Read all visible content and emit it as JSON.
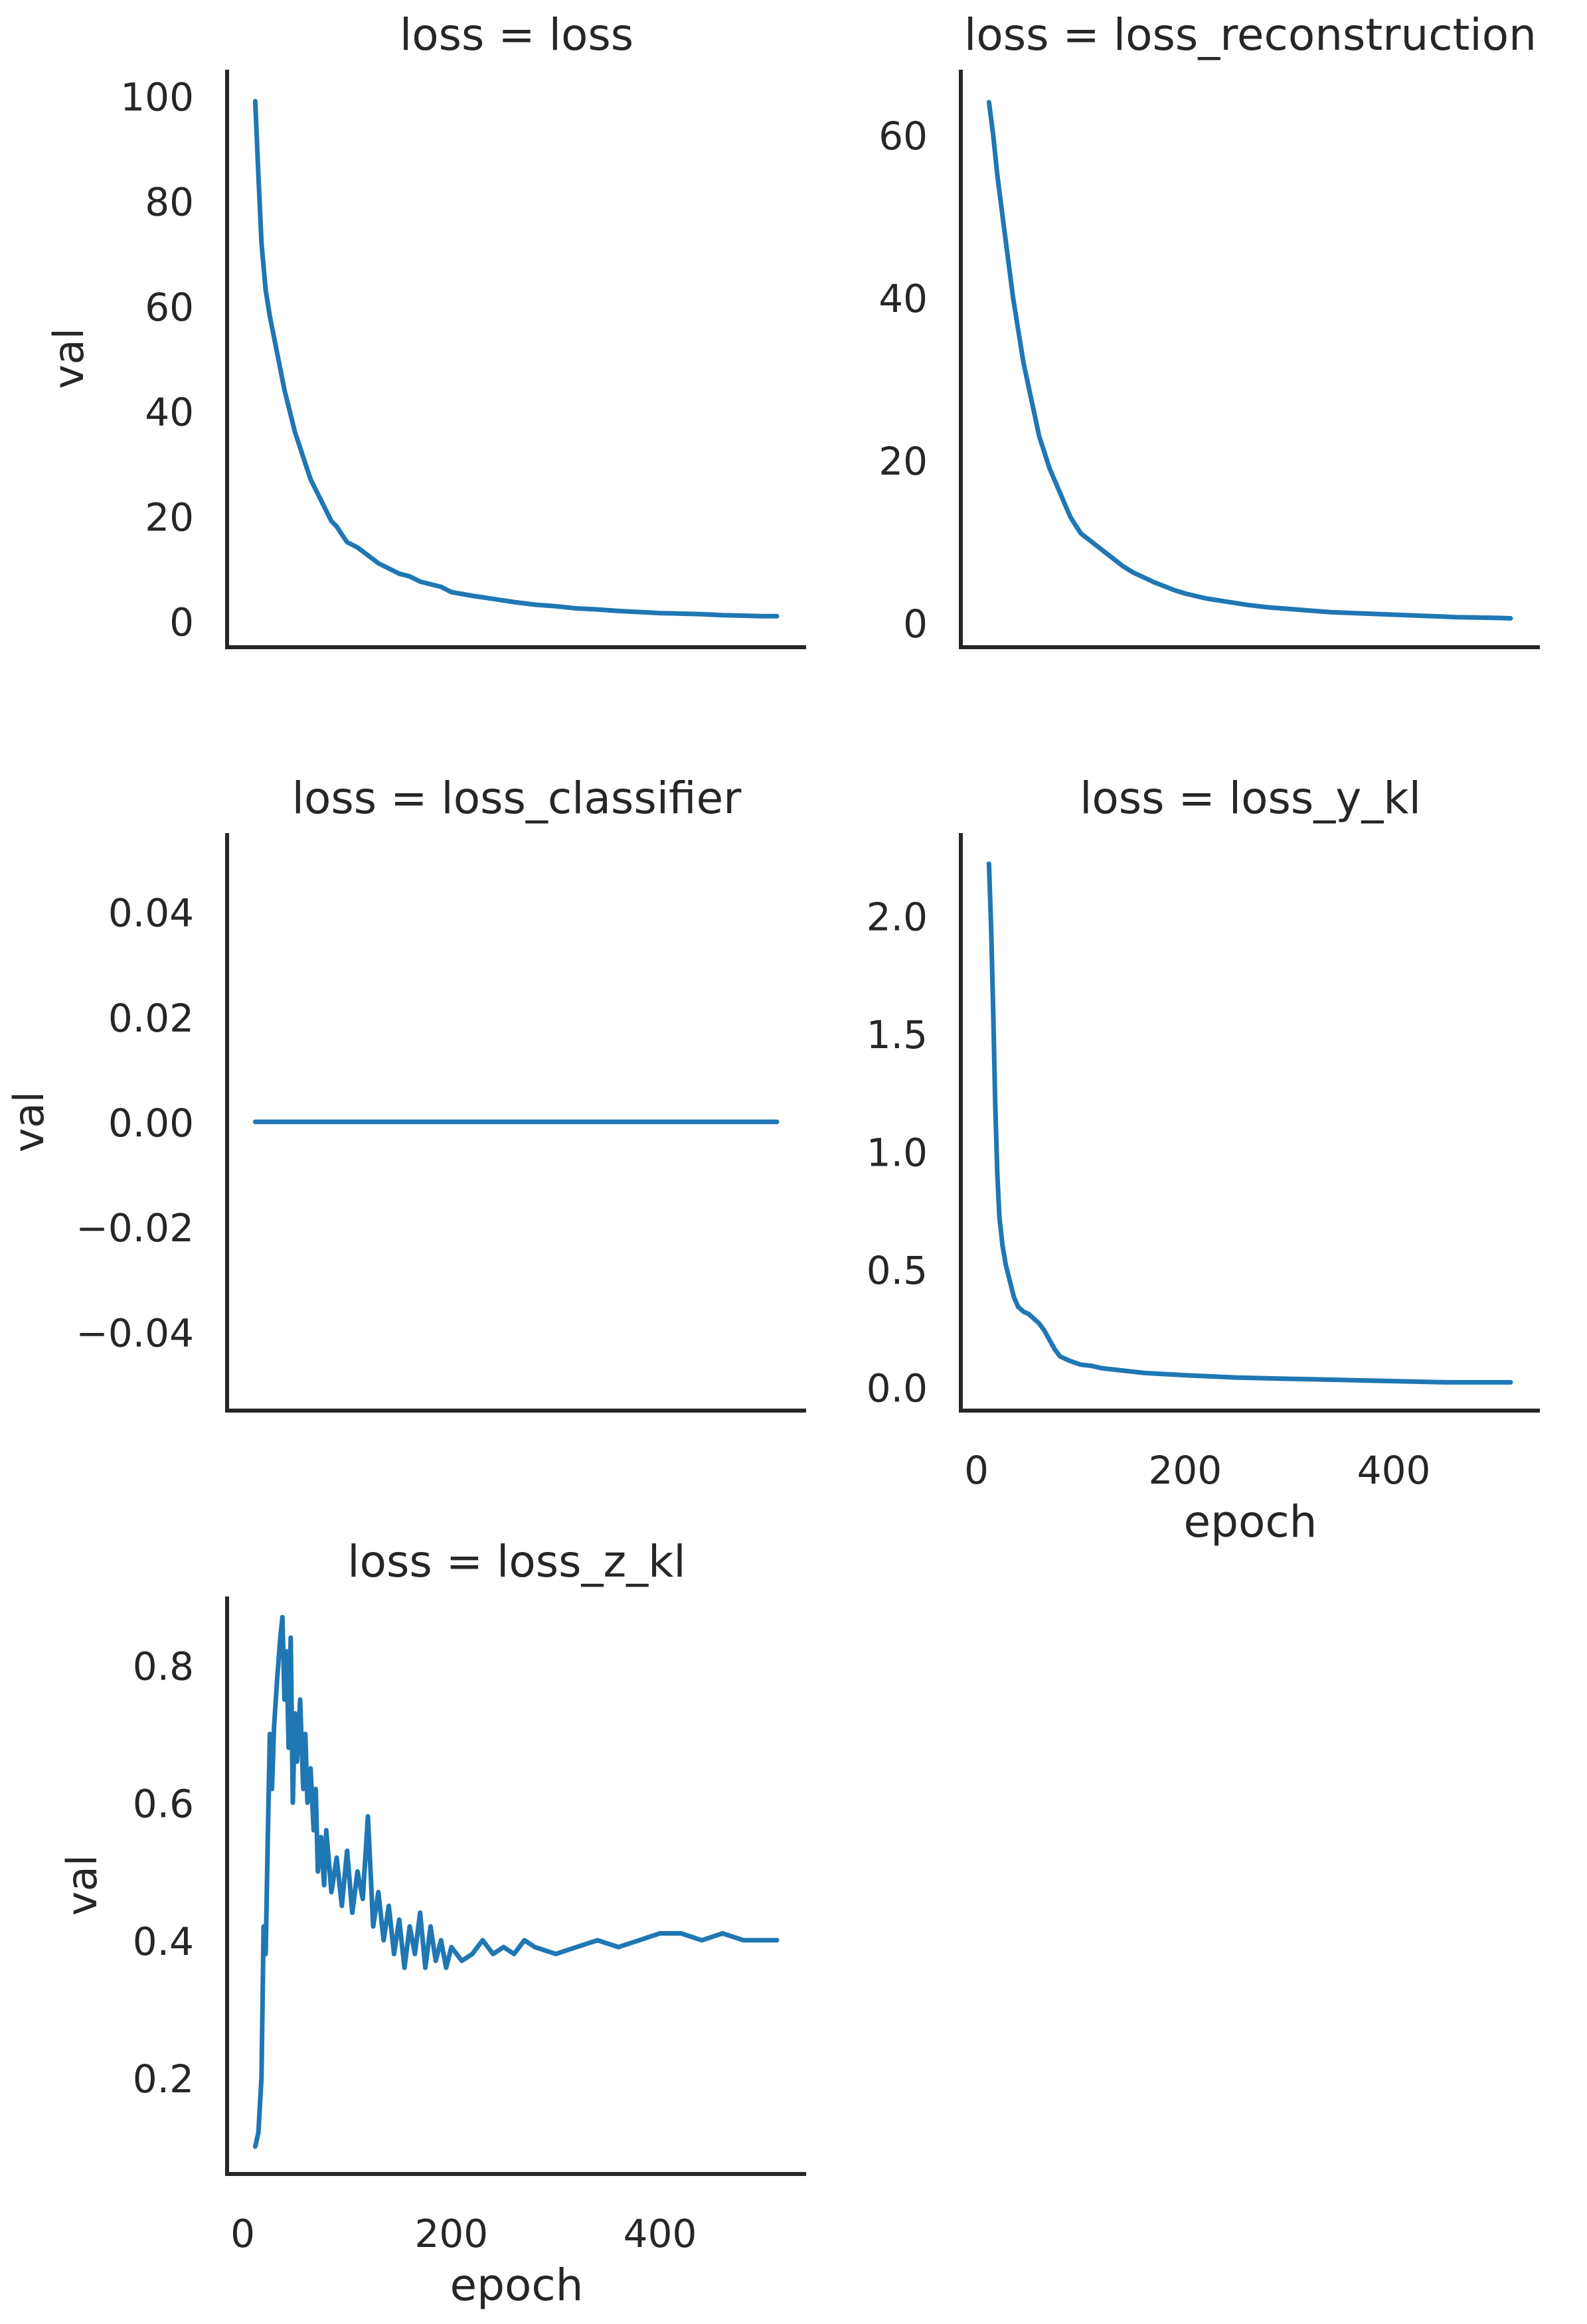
{
  "colors": {
    "line": "#1f77b4",
    "axis": "#262626",
    "text": "#262626",
    "background": "#ffffff"
  },
  "chart_data": [
    {
      "type": "line",
      "title": "loss = loss",
      "xlabel": "",
      "ylabel": "val",
      "xlim": [
        -15,
        540
      ],
      "ylim": [
        -5,
        105
      ],
      "yticks": [
        0,
        20,
        40,
        60,
        80,
        100
      ],
      "ytick_labels": [
        "0",
        "20",
        "40",
        "60",
        "80",
        "100"
      ],
      "xticks": [],
      "xtick_labels": [],
      "series": [
        {
          "x": [
            12,
            15,
            18,
            22,
            26,
            30,
            35,
            40,
            45,
            50,
            55,
            60,
            65,
            70,
            75,
            80,
            85,
            90,
            95,
            100,
            110,
            120,
            130,
            140,
            150,
            160,
            170,
            180,
            190,
            200,
            220,
            240,
            260,
            280,
            300,
            320,
            340,
            360,
            380,
            400,
            420,
            440,
            460,
            480,
            500,
            512
          ],
          "y": [
            99,
            85,
            72,
            63,
            58,
            54,
            49,
            44,
            40,
            36,
            33,
            30,
            27,
            25,
            23,
            21,
            19,
            18,
            16.5,
            15,
            14,
            12.5,
            11,
            10,
            9,
            8.5,
            7.5,
            7,
            6.5,
            5.5,
            4.8,
            4.2,
            3.6,
            3.1,
            2.8,
            2.4,
            2.2,
            1.9,
            1.7,
            1.5,
            1.4,
            1.3,
            1.1,
            1.0,
            0.9,
            0.9
          ]
        }
      ]
    },
    {
      "type": "line",
      "title": "loss = loss_reconstruction",
      "xlabel": "",
      "ylabel": "",
      "xlim": [
        -15,
        540
      ],
      "ylim": [
        -3,
        68
      ],
      "yticks": [
        0,
        20,
        40,
        60
      ],
      "ytick_labels": [
        "0",
        "20",
        "40",
        "60"
      ],
      "xticks": [],
      "xtick_labels": [],
      "series": [
        {
          "x": [
            12,
            16,
            20,
            25,
            30,
            35,
            40,
            45,
            50,
            55,
            60,
            65,
            70,
            75,
            80,
            85,
            90,
            95,
            100,
            110,
            120,
            130,
            140,
            150,
            160,
            170,
            180,
            190,
            200,
            220,
            240,
            260,
            280,
            300,
            320,
            340,
            360,
            380,
            400,
            420,
            440,
            460,
            480,
            500,
            512
          ],
          "y": [
            64,
            60,
            55,
            50,
            45,
            40,
            36,
            32,
            29,
            26,
            23,
            21,
            19,
            17.5,
            16,
            14.5,
            13,
            12,
            11,
            10,
            9,
            8,
            7,
            6.2,
            5.6,
            5.0,
            4.5,
            4.0,
            3.6,
            3.0,
            2.6,
            2.2,
            1.9,
            1.7,
            1.5,
            1.3,
            1.2,
            1.1,
            1.0,
            0.9,
            0.8,
            0.7,
            0.65,
            0.6,
            0.55
          ]
        }
      ]
    },
    {
      "type": "line",
      "title": "loss = loss_classifier",
      "xlabel": "",
      "ylabel": "val",
      "xlim": [
        -15,
        540
      ],
      "ylim": [
        -0.055,
        0.055
      ],
      "yticks": [
        -0.04,
        -0.02,
        0.0,
        0.02,
        0.04
      ],
      "ytick_labels": [
        "−0.04",
        "−0.02",
        "0.00",
        "0.02",
        "0.04"
      ],
      "xticks": [],
      "xtick_labels": [],
      "series": [
        {
          "x": [
            12,
            512
          ],
          "y": [
            0,
            0
          ]
        }
      ]
    },
    {
      "type": "line",
      "title": "loss = loss_y_kl",
      "xlabel": "epoch",
      "ylabel": "",
      "xlim": [
        -15,
        540
      ],
      "ylim": [
        -0.1,
        2.35
      ],
      "yticks": [
        0.0,
        0.5,
        1.0,
        1.5,
        2.0
      ],
      "ytick_labels": [
        "0.0",
        "0.5",
        "1.0",
        "1.5",
        "2.0"
      ],
      "xticks": [
        0,
        200,
        400
      ],
      "xtick_labels": [
        "0",
        "200",
        "400"
      ],
      "series": [
        {
          "x": [
            12,
            14,
            16,
            18,
            20,
            22,
            25,
            28,
            32,
            36,
            40,
            45,
            50,
            55,
            60,
            65,
            70,
            75,
            80,
            90,
            100,
            110,
            120,
            140,
            160,
            180,
            200,
            250,
            300,
            350,
            400,
            450,
            500,
            512
          ],
          "y": [
            2.22,
            1.95,
            1.6,
            1.2,
            0.9,
            0.72,
            0.6,
            0.52,
            0.45,
            0.38,
            0.34,
            0.32,
            0.31,
            0.29,
            0.27,
            0.24,
            0.2,
            0.16,
            0.13,
            0.11,
            0.095,
            0.09,
            0.08,
            0.07,
            0.06,
            0.055,
            0.05,
            0.04,
            0.035,
            0.03,
            0.025,
            0.02,
            0.02,
            0.02
          ]
        }
      ]
    },
    {
      "type": "line",
      "title": "loss = loss_z_kl",
      "xlabel": "epoch",
      "ylabel": "val",
      "xlim": [
        -15,
        540
      ],
      "ylim": [
        0.06,
        0.9
      ],
      "yticks": [
        0.2,
        0.4,
        0.6,
        0.8
      ],
      "ytick_labels": [
        "0.2",
        "0.4",
        "0.6",
        "0.8"
      ],
      "xticks": [
        0,
        200,
        400
      ],
      "xtick_labels": [
        "0",
        "200",
        "400"
      ],
      "series": [
        {
          "x": [
            12,
            15,
            18,
            20,
            22,
            24,
            26,
            28,
            30,
            33,
            36,
            38,
            40,
            42,
            44,
            46,
            48,
            50,
            52,
            55,
            58,
            60,
            62,
            65,
            68,
            70,
            72,
            75,
            78,
            80,
            85,
            90,
            95,
            100,
            105,
            110,
            115,
            120,
            125,
            130,
            135,
            140,
            145,
            150,
            155,
            160,
            165,
            170,
            175,
            180,
            185,
            190,
            195,
            200,
            210,
            220,
            230,
            240,
            250,
            260,
            270,
            280,
            300,
            320,
            340,
            360,
            380,
            400,
            420,
            440,
            460,
            480,
            500,
            512
          ],
          "y": [
            0.1,
            0.12,
            0.2,
            0.42,
            0.38,
            0.55,
            0.7,
            0.62,
            0.71,
            0.78,
            0.84,
            0.87,
            0.75,
            0.82,
            0.68,
            0.84,
            0.6,
            0.73,
            0.66,
            0.75,
            0.62,
            0.7,
            0.6,
            0.65,
            0.56,
            0.62,
            0.5,
            0.55,
            0.48,
            0.56,
            0.47,
            0.52,
            0.45,
            0.53,
            0.44,
            0.5,
            0.46,
            0.58,
            0.42,
            0.47,
            0.4,
            0.45,
            0.38,
            0.43,
            0.36,
            0.42,
            0.38,
            0.44,
            0.36,
            0.42,
            0.37,
            0.4,
            0.36,
            0.39,
            0.37,
            0.38,
            0.4,
            0.38,
            0.39,
            0.38,
            0.4,
            0.39,
            0.38,
            0.39,
            0.4,
            0.39,
            0.4,
            0.41,
            0.41,
            0.4,
            0.41,
            0.4,
            0.4,
            0.4
          ]
        }
      ]
    }
  ]
}
